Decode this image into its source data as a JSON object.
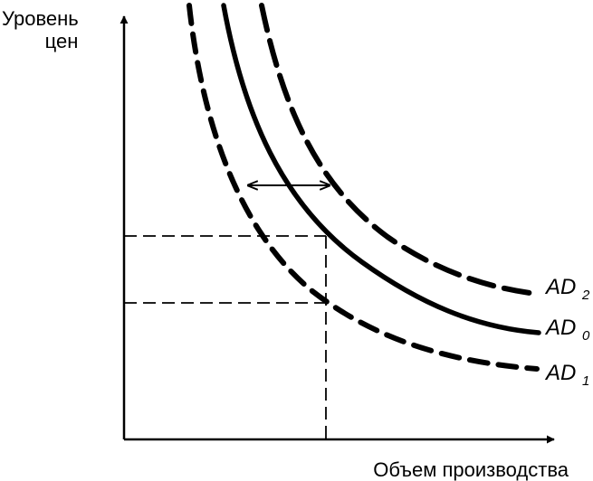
{
  "axes": {
    "y_label_line1": "Уровень",
    "y_label_line2": "цен",
    "x_label": "Объем производства"
  },
  "curves": [
    {
      "id": "ad2",
      "main": "AD",
      "sub": "2",
      "style": "long-dash"
    },
    {
      "id": "ad0",
      "main": "AD",
      "sub": "0",
      "style": "solid"
    },
    {
      "id": "ad1",
      "main": "AD",
      "sub": "1",
      "style": "dash"
    }
  ],
  "shift_arrow": "double-headed",
  "colors": {
    "ink": "#000000",
    "background": "#ffffff"
  }
}
